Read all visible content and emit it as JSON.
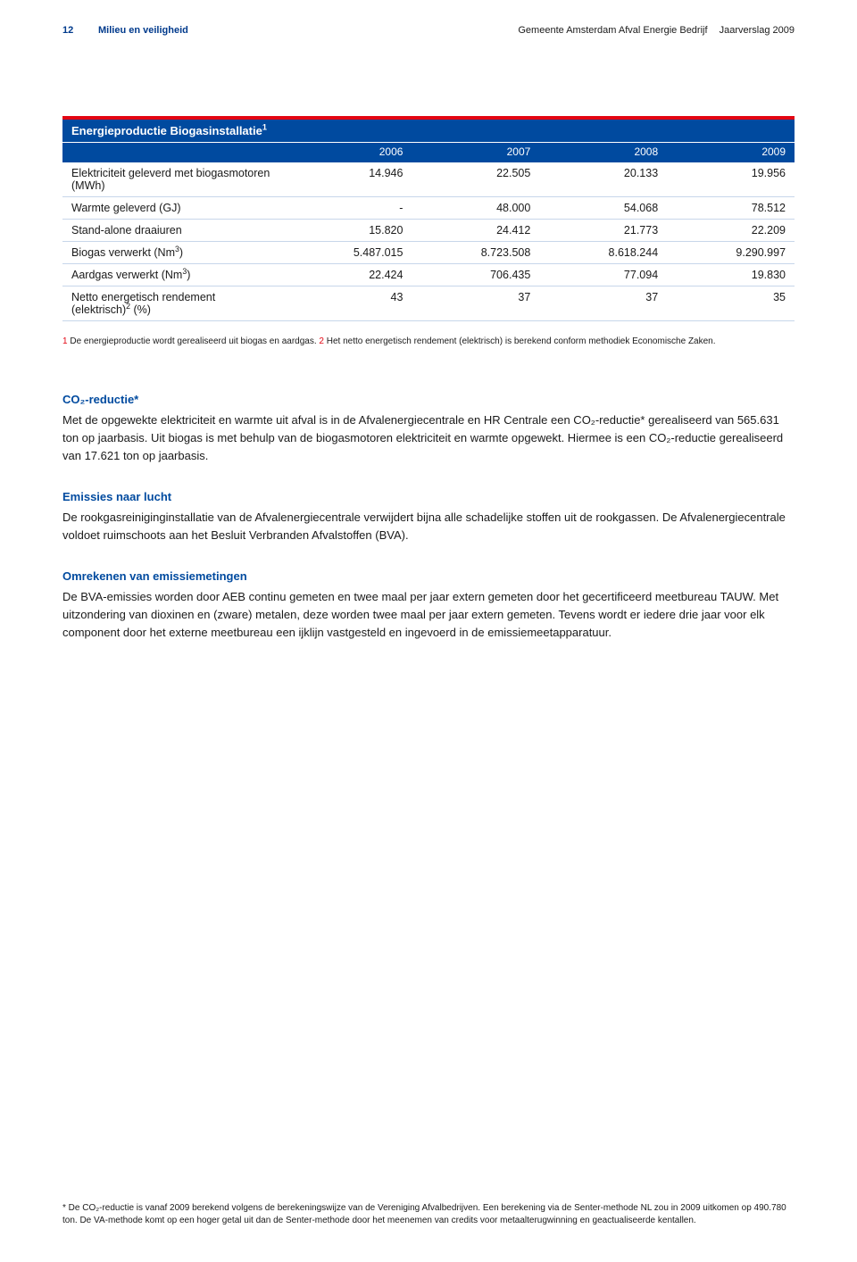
{
  "header": {
    "page": "12",
    "section": "Milieu en veiligheid",
    "rightA": "Gemeente Amsterdam  Afval Energie Bedrijf",
    "rightB": "Jaarverslag 2009"
  },
  "table": {
    "title": "Energieproductie Biogasinstallatie",
    "title_sup": "1",
    "years": [
      "2006",
      "2007",
      "2008",
      "2009"
    ],
    "rows": [
      {
        "label": "Elektriciteit geleverd met biogasmotoren (MWh)",
        "cells": [
          "14.946",
          "22.505",
          "20.133",
          "19.956"
        ]
      },
      {
        "label": "Warmte geleverd (GJ)",
        "cells": [
          "-",
          "48.000",
          "54.068",
          "78.512"
        ]
      },
      {
        "label": "Stand-alone draaiuren",
        "cells": [
          "15.820",
          "24.412",
          "21.773",
          "22.209"
        ]
      },
      {
        "label": "Biogas verwerkt (Nm",
        "label_sup": "3",
        "label_tail": ")",
        "cells": [
          "5.487.015",
          "8.723.508",
          "8.618.244",
          "9.290.997"
        ]
      },
      {
        "label": "Aardgas verwerkt (Nm",
        "label_sup": "3",
        "label_tail": ")",
        "cells": [
          "22.424",
          "706.435",
          "77.094",
          "19.830"
        ]
      },
      {
        "label": "Netto energetisch rendement (elektrisch)",
        "label_sup": "2",
        "label_tail": " (%)",
        "cells": [
          "43",
          "37",
          "37",
          "35"
        ]
      }
    ]
  },
  "foot1": {
    "a_num": "1",
    "a_txt": " De energieproductie wordt gerealiseerd uit biogas en aardgas.  ",
    "b_num": "2",
    "b_txt": " Het netto energetisch rendement (elektrisch) is berekend conform methodiek Economische Zaken."
  },
  "sections": [
    {
      "title": "CO₂-reductie*",
      "body": "Met de opgewekte elektriciteit en warmte uit afval is in de Afvalenergiecentrale en HR Centrale een CO₂-reductie* gerealiseerd van 565.631 ton op jaarbasis. Uit biogas is met behulp van de biogasmotoren elektriciteit en warmte opgewekt. Hiermee is een CO₂-reductie gerealiseerd van 17.621 ton op jaarbasis."
    },
    {
      "title": "Emissies naar lucht",
      "body": "De rookgasreiniginginstallatie van de Afvalenergiecentrale verwijdert bijna alle schadelijke stoffen uit de rookgassen. De Afvalenergiecentrale voldoet ruimschoots aan het Besluit Verbranden Afvalstoffen (BVA)."
    },
    {
      "title": "Omrekenen van emissiemetingen",
      "body": "De BVA-emissies worden door AEB continu gemeten en twee maal per jaar extern gemeten door het gecertificeerd meetbureau TAUW. Met uitzondering van dioxinen en (zware) metalen, deze worden twee maal per jaar extern gemeten. Tevens wordt er iedere drie jaar voor elk component door het externe meetbureau een ijklijn vastgesteld en ingevoerd in de emissiemeetapparatuur."
    }
  ],
  "bottom": "* De CO₂-reductie is vanaf 2009 berekend volgens de  berekeningswijze  van de Vereniging Afvalbedrijven. Een berekening via de Senter-methode NL zou in 2009 uitkomen op 490.780  ton. De VA-methode komt op een hoger getal uit dan de Senter-methode door het meenemen van credits voor metaalterugwinning en geactualiseerde kentallen."
}
